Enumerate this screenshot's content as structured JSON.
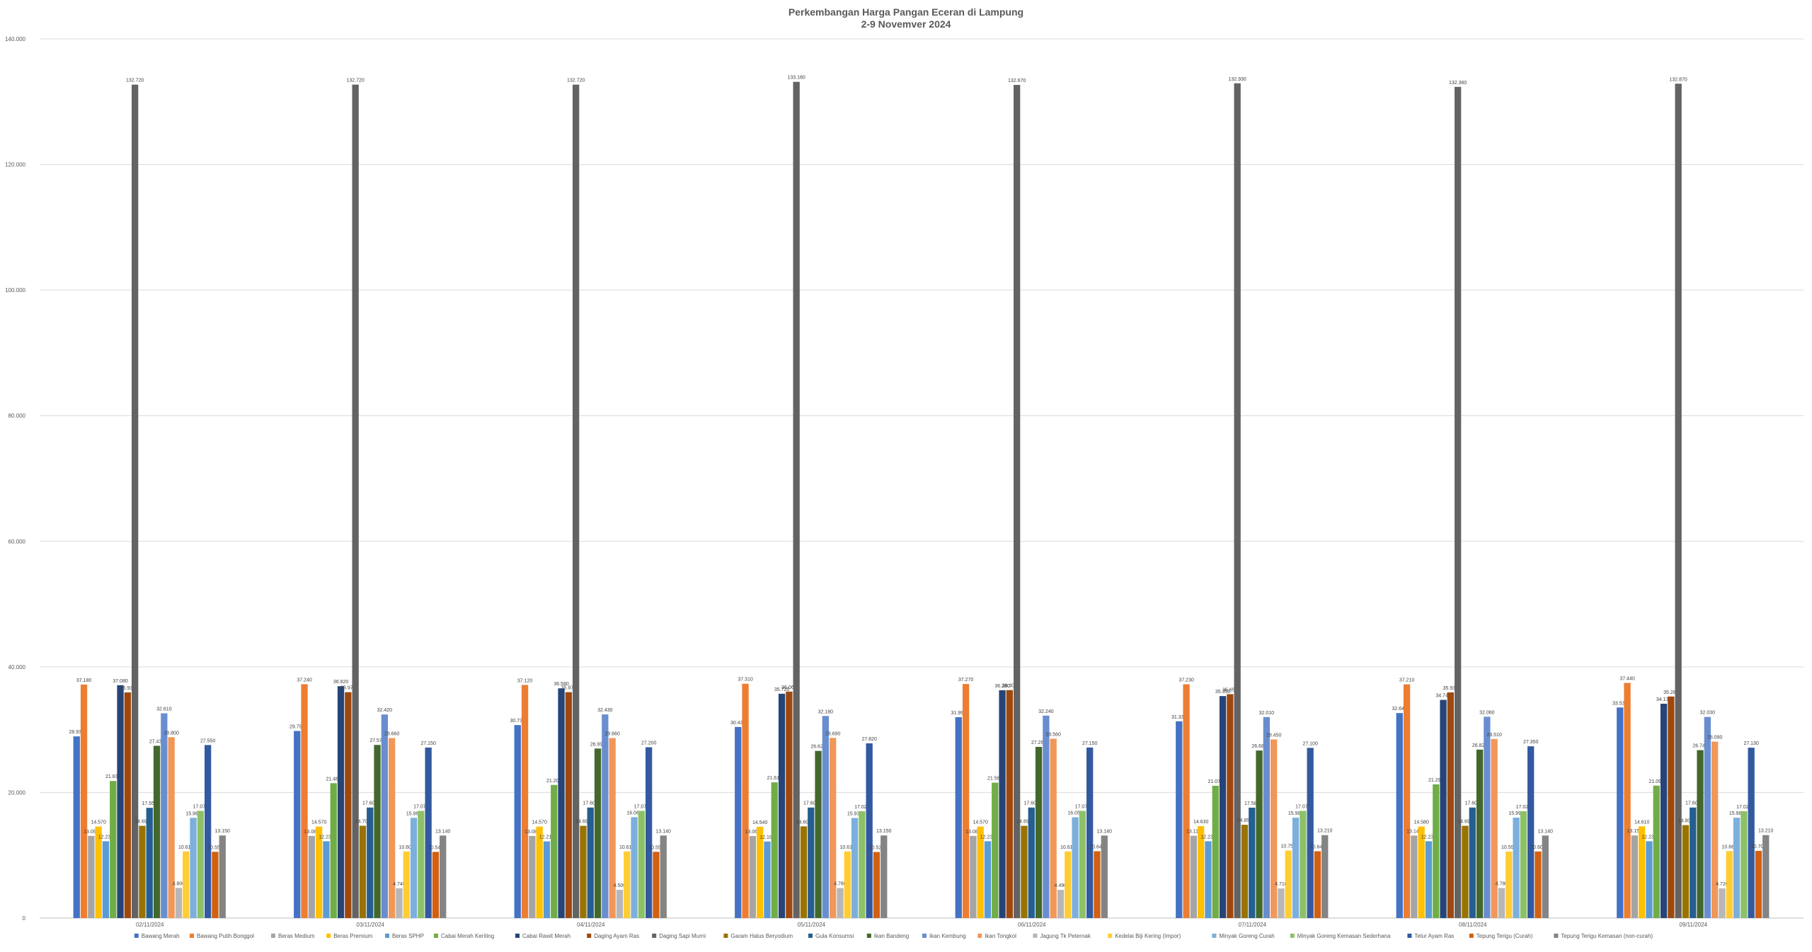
{
  "chart_data": {
    "type": "bar",
    "title": "Perkembangan Harga Pangan Eceran di Lampung",
    "subtitle": "2-9 Novemver 2024",
    "xlabel": "",
    "ylabel": "",
    "ylim": [
      0,
      140000
    ],
    "yticks": [
      "0",
      "20.000",
      "40.000",
      "60.000",
      "80.000",
      "100.000",
      "120.000",
      "140.000"
    ],
    "grid": true,
    "legend_position": "bottom",
    "categories": [
      "02/11/2024",
      "03/11/2024",
      "04/11/2024",
      "05/11/2024",
      "06/11/2024",
      "07/11/2024",
      "08/11/2024",
      "09/11/2024"
    ],
    "series": [
      {
        "name": "Bawang Merah",
        "color": "#4472C4",
        "values": [
          28930,
          29790,
          30730,
          30430,
          31990,
          31330,
          32640,
          33530
        ]
      },
      {
        "name": "Bawang Putih Bonggol",
        "color": "#ED7D31",
        "values": [
          37180,
          37240,
          37120,
          37310,
          37270,
          37230,
          37210,
          37440
        ]
      },
      {
        "name": "Beras Medium",
        "color": "#A5A5A5",
        "values": [
          13090,
          13080,
          13080,
          13060,
          13080,
          13110,
          13140,
          13150
        ]
      },
      {
        "name": "Beras Premium",
        "color": "#FFC000",
        "values": [
          14570,
          14570,
          14570,
          14540,
          14570,
          14630,
          14580,
          14610
        ]
      },
      {
        "name": "Beras SPHP",
        "color": "#5B9BD5",
        "values": [
          12230,
          12230,
          12210,
          12190,
          12230,
          12230,
          12230,
          12230
        ]
      },
      {
        "name": "Cabai Merah Keriting",
        "color": "#70AD47",
        "values": [
          21830,
          21480,
          21200,
          21610,
          21560,
          21070,
          21290,
          21090
        ]
      },
      {
        "name": "Cabai Rawit Merah",
        "color": "#264478",
        "values": [
          37080,
          36920,
          36580,
          35720,
          36280,
          35350,
          34740,
          34130
        ]
      },
      {
        "name": "Daging Ayam Ras",
        "color": "#9E480E",
        "values": [
          35930,
          35970,
          35970,
          36060,
          36300,
          35650,
          35930,
          35280
        ]
      },
      {
        "name": "Daging Sapi Murni",
        "color": "#636363",
        "values": [
          132720,
          132720,
          132720,
          133160,
          132670,
          132930,
          132360,
          132870
        ]
      },
      {
        "name": "Garam Halus Beryodium",
        "color": "#997300",
        "values": [
          14690,
          14700,
          14690,
          14600,
          14690,
          14850,
          14690,
          14800
        ]
      },
      {
        "name": "Gula Konsumsi",
        "color": "#255E91",
        "values": [
          17550,
          17600,
          17600,
          17600,
          17600,
          17580,
          17600,
          17600
        ]
      },
      {
        "name": "Ikan Bandeng",
        "color": "#43682B",
        "values": [
          27430,
          27570,
          26990,
          26620,
          27260,
          26680,
          26820,
          26740
        ]
      },
      {
        "name": "Ikan Kembung",
        "color": "#698ED0",
        "values": [
          32610,
          32420,
          32430,
          32180,
          32240,
          32010,
          32060,
          32030
        ]
      },
      {
        "name": "Ikan Tongkol",
        "color": "#F1975A",
        "values": [
          28800,
          28660,
          28660,
          28690,
          28560,
          28450,
          28510,
          28090
        ]
      },
      {
        "name": "Jagung Tk Peternak",
        "color": "#B7B7B7",
        "values": [
          4800,
          4740,
          4500,
          4780,
          4490,
          4710,
          4780,
          4720
        ]
      },
      {
        "name": "Kedelai Biji Kering (Impor)",
        "color": "#FFCD33",
        "values": [
          10610,
          10600,
          10610,
          10610,
          10610,
          10750,
          10590,
          10660
        ]
      },
      {
        "name": "Minyak Goreng Curah",
        "color": "#7CAFDD",
        "values": [
          15960,
          15960,
          16060,
          15930,
          16050,
          15980,
          15990,
          15980
        ]
      },
      {
        "name": "Minyak Goreng Kemasan Sederhana",
        "color": "#8CC168",
        "values": [
          17070,
          17070,
          17070,
          17020,
          17070,
          17070,
          17020,
          17020
        ]
      },
      {
        "name": "Telur Ayam Ras",
        "color": "#335AA1",
        "values": [
          27550,
          27150,
          27200,
          27820,
          27150,
          27100,
          27350,
          27130
        ]
      },
      {
        "name": "Tepung Terigu (Curah)",
        "color": "#D26012",
        "values": [
          10550,
          10540,
          10550,
          10520,
          10640,
          10640,
          10600,
          10700
        ]
      },
      {
        "name": "Tepung Terigu Kemasan (non-curah)",
        "color": "#848484",
        "values": [
          13150,
          13140,
          13140,
          13150,
          13140,
          13210,
          13140,
          13210
        ]
      }
    ]
  }
}
